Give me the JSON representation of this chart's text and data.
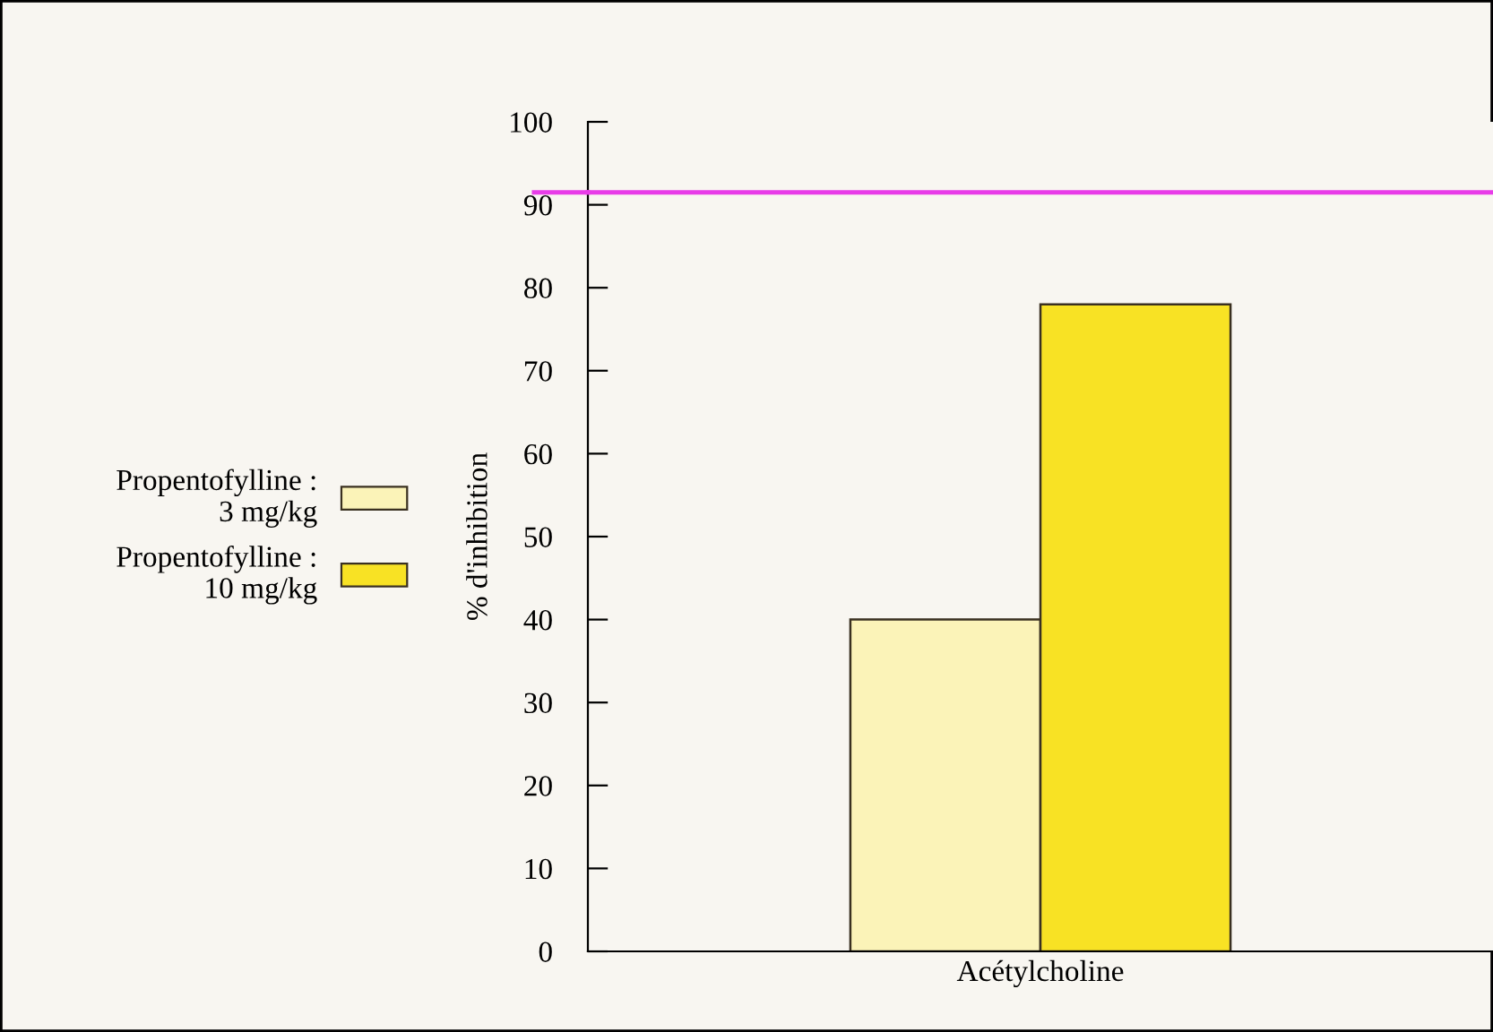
{
  "chart_data": {
    "type": "bar",
    "ylabel": "% d'inhibition",
    "categories": [
      "Acétylcholine"
    ],
    "series": [
      {
        "name": "Propentofylline :\n3 mg/kg",
        "color": "#fbf3b8",
        "values": [
          40
        ]
      },
      {
        "name": "Propentofylline :\n10 mg/kg",
        "color": "#f8e224",
        "values": [
          78
        ]
      }
    ],
    "ylim": [
      0,
      100
    ],
    "yticks": [
      0,
      10,
      20,
      30,
      40,
      50,
      60,
      70,
      80,
      90,
      100
    ],
    "ref_lines": [
      {
        "axis": "y",
        "value": 91.5,
        "color": "#e83ce8"
      }
    ],
    "grid": false,
    "legend": "left"
  }
}
